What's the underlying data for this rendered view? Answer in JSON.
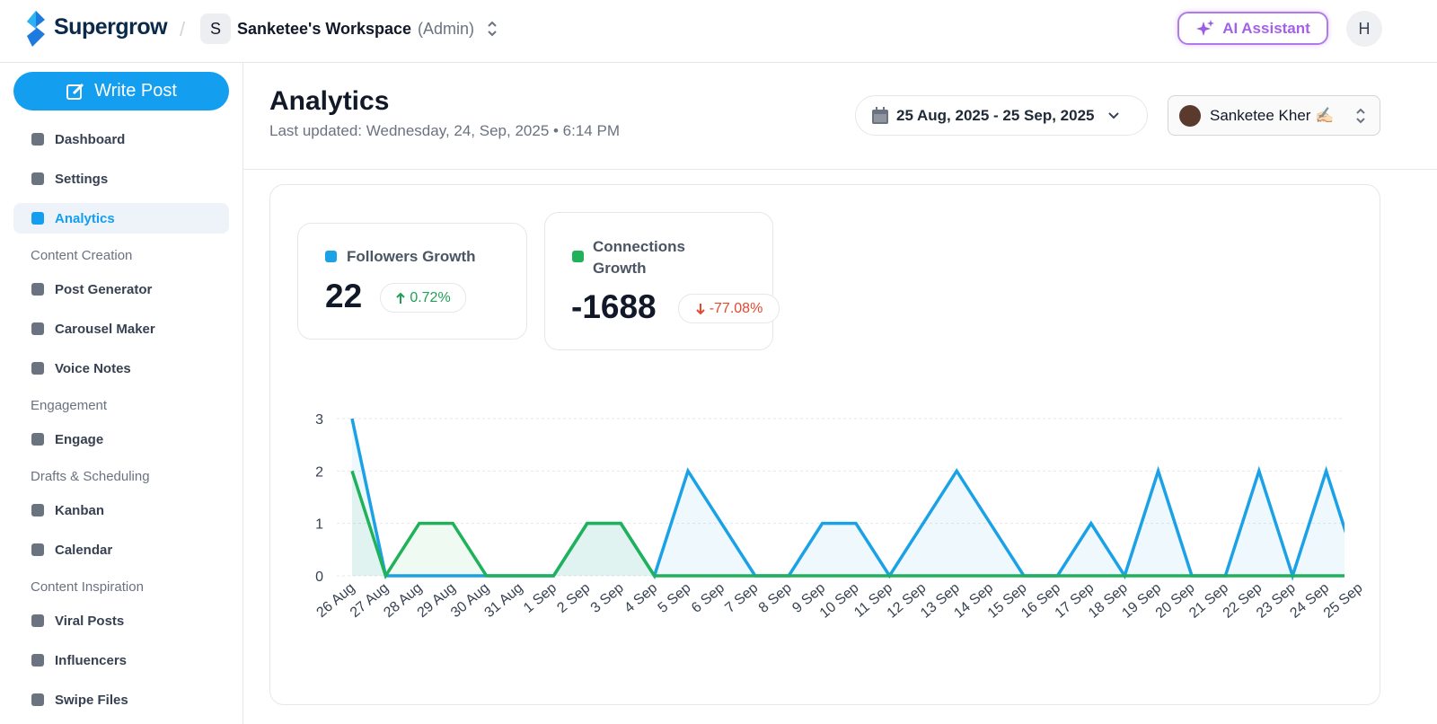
{
  "header": {
    "brand": "Supergrow",
    "workspace_initial": "S",
    "workspace": "Sanketee's Workspace",
    "role": "(Admin)",
    "ai_button": "AI Assistant",
    "avatar": "H"
  },
  "sidebar": {
    "write_post": "Write Post",
    "main": [
      "Dashboard",
      "Settings",
      "Analytics"
    ],
    "active": 2,
    "sections": [
      {
        "title": "Content Creation",
        "items": [
          "Post Generator",
          "Carousel Maker",
          "Voice Notes"
        ]
      },
      {
        "title": "Engagement",
        "items": [
          "Engage"
        ]
      },
      {
        "title": "Drafts & Scheduling",
        "items": [
          "Kanban",
          "Calendar"
        ]
      },
      {
        "title": "Content Inspiration",
        "items": [
          "Viral Posts",
          "Influencers",
          "Swipe Files"
        ]
      }
    ]
  },
  "page": {
    "title": "Analytics",
    "last_updated": "Last updated: Wednesday, 24, Sep, 2025 • 6:14 PM",
    "date_range": "25 Aug, 2025 - 25 Sep, 2025",
    "profile": "Sanketee Kher ✍🏻"
  },
  "stats": [
    {
      "value": 22,
      "change": "0.72%"
    },
    {
      "value": -1688,
      "change": "-77.08%"
    }
  ],
  "chart_data": {
    "type": "line",
    "categories": [
      "26 Aug",
      "27 Aug",
      "28 Aug",
      "29 Aug",
      "30 Aug",
      "31 Aug",
      "1 Sep",
      "2 Sep",
      "3 Sep",
      "4 Sep",
      "5 Sep",
      "6 Sep",
      "7 Sep",
      "8 Sep",
      "9 Sep",
      "10 Sep",
      "11 Sep",
      "12 Sep",
      "13 Sep",
      "14 Sep",
      "15 Sep",
      "16 Sep",
      "17 Sep",
      "18 Sep",
      "19 Sep",
      "20 Sep",
      "21 Sep",
      "22 Sep",
      "23 Sep",
      "24 Sep",
      "25 Sep"
    ],
    "series": [
      {
        "name": "Followers Growth",
        "color": "#1ba1e6",
        "values": [
          3,
          0,
          0,
          0,
          0,
          0,
          0,
          1,
          1,
          0,
          2,
          1,
          0,
          0,
          1,
          1,
          0,
          1,
          2,
          1,
          0,
          0,
          1,
          0,
          2,
          0,
          0,
          2,
          0,
          2,
          0
        ]
      },
      {
        "name": "Connections Growth",
        "color": "#1fb25a",
        "values": [
          2,
          0,
          1,
          1,
          0,
          0,
          0,
          1,
          1,
          0,
          0,
          0,
          0,
          0,
          0,
          0,
          0,
          0,
          0,
          0,
          0,
          0,
          0,
          0,
          0,
          0,
          0,
          0,
          0,
          0,
          0
        ]
      }
    ],
    "ylim": [
      0,
      3
    ],
    "yticks": [
      0,
      1,
      2,
      3
    ],
    "grid": true
  }
}
